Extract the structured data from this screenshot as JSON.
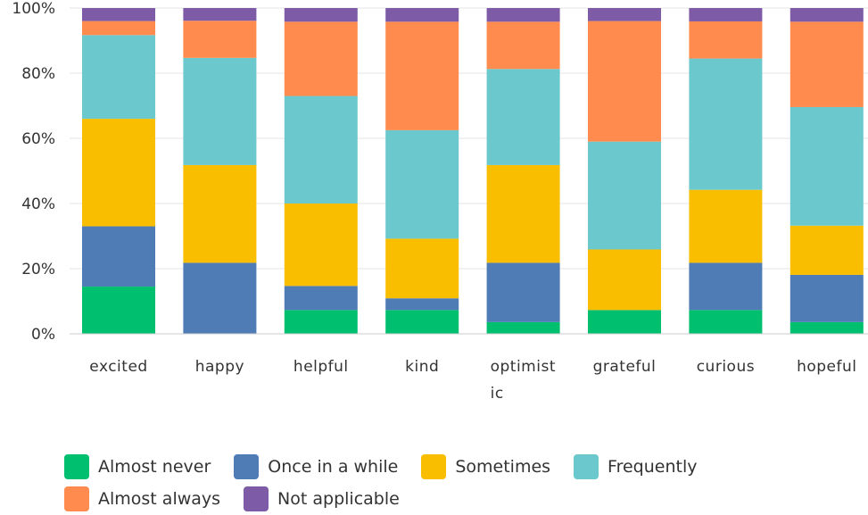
{
  "chart_data": {
    "type": "bar",
    "stacked": true,
    "categories": [
      "excited",
      "happy",
      "helpful",
      "kind",
      "optimistic",
      "grateful",
      "curious",
      "hopeful"
    ],
    "category_display": [
      [
        "excited"
      ],
      [
        "happy"
      ],
      [
        "helpful"
      ],
      [
        "kind"
      ],
      [
        "optimist",
        "ic"
      ],
      [
        "grateful"
      ],
      [
        "curious"
      ],
      [
        "hopeful"
      ]
    ],
    "series": [
      {
        "name": "Almost never",
        "color": "#00BF6F",
        "values": [
          14.5,
          0,
          7.3,
          7.3,
          3.6,
          7.3,
          7.3,
          3.6
        ]
      },
      {
        "name": "Once in a while",
        "color": "#507CB6",
        "values": [
          18.5,
          21.8,
          7.4,
          3.6,
          18.2,
          0,
          14.5,
          14.5
        ]
      },
      {
        "name": "Sometimes",
        "color": "#F9BE00",
        "values": [
          33.0,
          30.0,
          25.3,
          18.3,
          30.0,
          18.6,
          22.4,
          15.1
        ]
      },
      {
        "name": "Frequently",
        "color": "#6BC8CD",
        "values": [
          25.7,
          32.9,
          33.0,
          33.3,
          29.5,
          33.1,
          40.3,
          36.4
        ]
      },
      {
        "name": "Almost always",
        "color": "#FF8B4F",
        "values": [
          4.3,
          11.4,
          22.8,
          33.3,
          14.5,
          37.0,
          11.4,
          26.2
        ]
      },
      {
        "name": "Not applicable",
        "color": "#7D5BA6",
        "values": [
          4.0,
          3.9,
          4.2,
          4.2,
          4.2,
          4.0,
          4.1,
          4.2
        ]
      }
    ],
    "ylim": [
      0,
      100
    ],
    "yticks": [
      "0%",
      "20%",
      "40%",
      "60%",
      "80%",
      "100%"
    ],
    "ytick_values": [
      0,
      20,
      40,
      60,
      80,
      100
    ],
    "grid": true,
    "legend_position": "bottom-left",
    "title": "",
    "xlabel": "",
    "ylabel": ""
  }
}
